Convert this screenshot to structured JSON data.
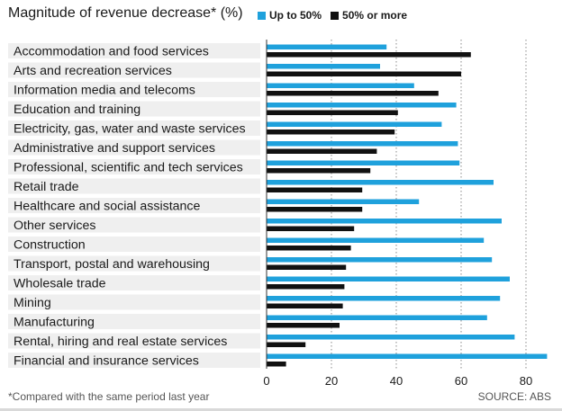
{
  "chart_data": {
    "type": "bar",
    "orientation": "horizontal",
    "title": "Magnitude of revenue decrease* (%)",
    "categories": [
      "Accommodation and food services",
      "Arts and recreation services",
      "Information media and telecoms",
      "Education and training",
      "Electricity, gas, water and waste services",
      "Administrative and support services",
      "Professional, scientific and tech services",
      "Retail trade",
      "Healthcare and social assistance",
      "Other services",
      "Construction",
      "Transport, postal and warehousing",
      "Wholesale trade",
      "Mining",
      "Manufacturing",
      "Rental, hiring and real estate services",
      "Financial and insurance services"
    ],
    "series": [
      {
        "name": "Up to 50%",
        "color": "#1fa1dc",
        "values": [
          37,
          35,
          45.5,
          58.5,
          54,
          59,
          59.5,
          70,
          47,
          72.5,
          67,
          69.5,
          75,
          72,
          68,
          76.5,
          86.5
        ]
      },
      {
        "name": "50% or more",
        "color": "#111111",
        "values": [
          63,
          60,
          53,
          40.5,
          39.5,
          34,
          32,
          29.5,
          29.5,
          27,
          26,
          24.5,
          24,
          23.5,
          22.5,
          12,
          6
        ]
      }
    ],
    "xlim": [
      0,
      87
    ],
    "xticks": [
      "0",
      "20",
      "40",
      "60",
      "80"
    ],
    "xtick_values": [
      0,
      20,
      40,
      60,
      80
    ],
    "grid": "vertical dotted",
    "legend_position": "top"
  },
  "footnote": "*Compared with the same period last year",
  "source": "SOURCE: ABS"
}
